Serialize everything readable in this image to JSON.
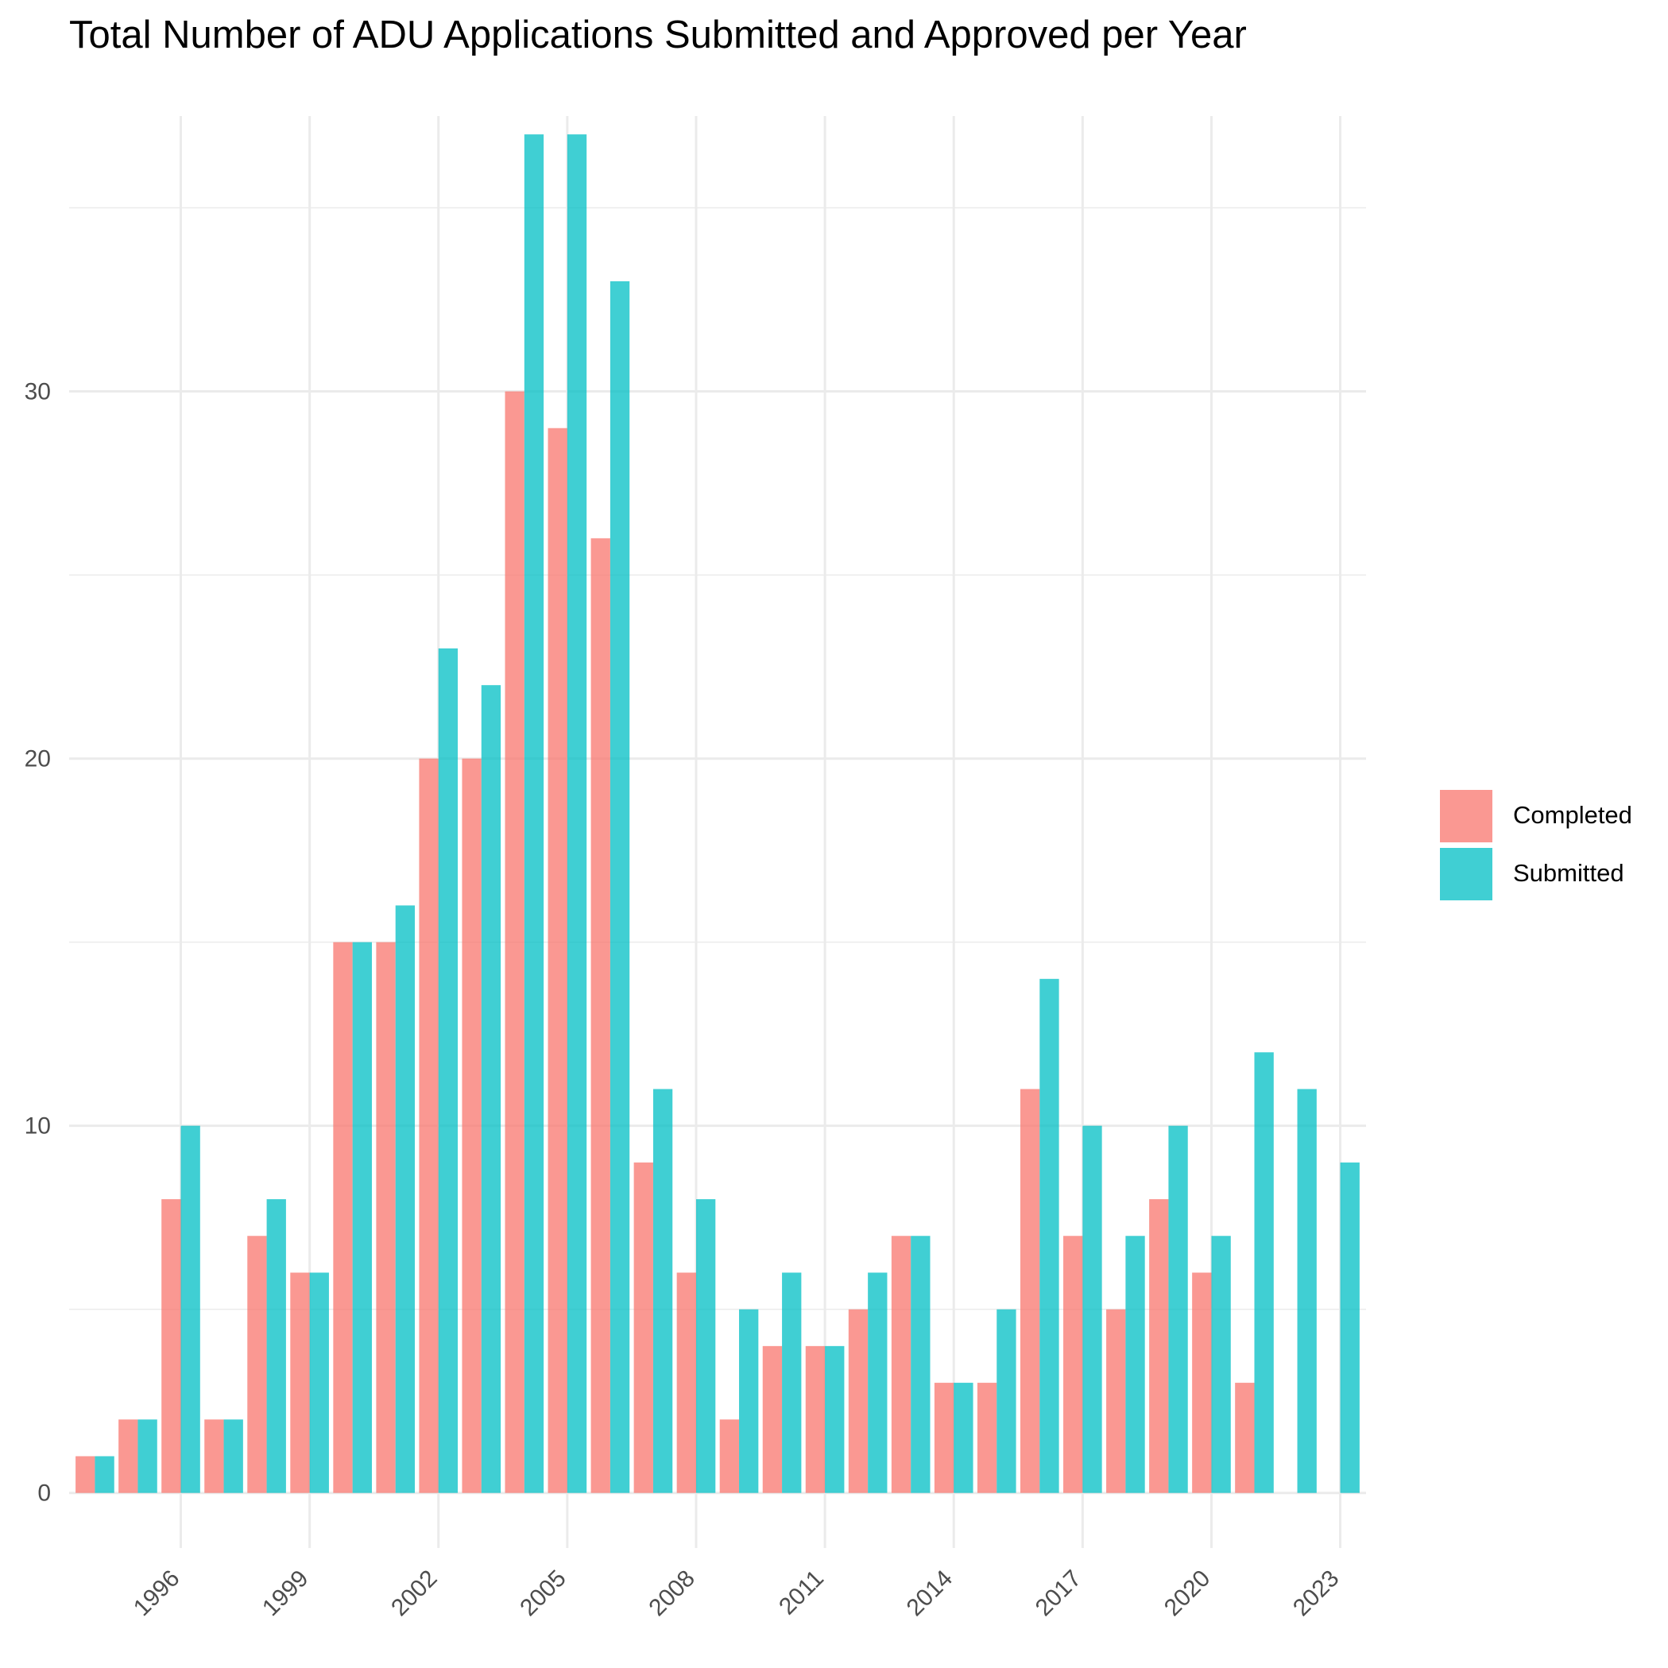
{
  "chart_data": {
    "type": "bar",
    "title": "Total Number of ADU Applications Submitted and Approved per Year",
    "xlabel": "",
    "ylabel": "",
    "x": [
      1994,
      1995,
      1996,
      1997,
      1998,
      1999,
      2000,
      2001,
      2002,
      2003,
      2004,
      2005,
      2006,
      2007,
      2008,
      2009,
      2010,
      2011,
      2012,
      2013,
      2014,
      2015,
      2016,
      2017,
      2018,
      2019,
      2020,
      2021,
      2022,
      2023
    ],
    "x_ticks": [
      "1996",
      "1999",
      "2002",
      "2005",
      "2008",
      "2011",
      "2014",
      "2017",
      "2020",
      "2023"
    ],
    "y_ticks": [
      "0",
      "10",
      "20",
      "30"
    ],
    "ylim": [
      -1.5,
      37.5
    ],
    "series": [
      {
        "name": "Completed",
        "color": "#F8766D",
        "values": [
          1,
          2,
          8,
          2,
          7,
          6,
          15,
          15,
          20,
          20,
          30,
          29,
          26,
          9,
          6,
          2,
          4,
          4,
          5,
          7,
          3,
          3,
          11,
          7,
          5,
          8,
          6,
          3,
          0,
          0
        ]
      },
      {
        "name": "Submitted",
        "color": "#00BFC4",
        "values": [
          1,
          2,
          10,
          2,
          8,
          6,
          15,
          16,
          23,
          22,
          37,
          37,
          33,
          11,
          8,
          5,
          6,
          4,
          6,
          7,
          3,
          5,
          14,
          10,
          7,
          10,
          7,
          12,
          11,
          9
        ]
      }
    ],
    "bar_opacity": 0.75,
    "grid": true,
    "legend_position": "right"
  }
}
